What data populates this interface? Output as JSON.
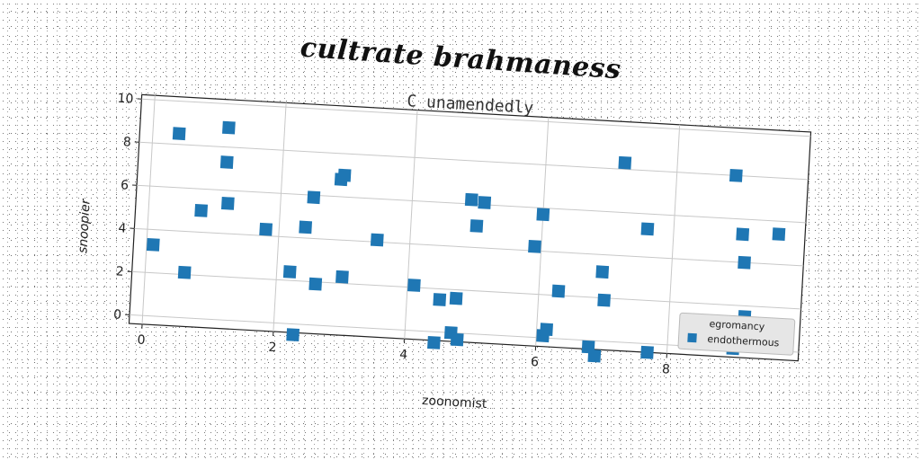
{
  "page_title": "cultrate brahmaness",
  "chart_data": {
    "type": "scatter",
    "title": "C unamendedly",
    "xlabel": "zoonomist",
    "ylabel": "snoopier",
    "xlim": [
      -0.2,
      10
    ],
    "ylim": [
      -0.4,
      10.2
    ],
    "xticks": [
      0,
      2,
      4,
      6,
      8
    ],
    "yticks": [
      0,
      2,
      4,
      6,
      8,
      10
    ],
    "grid": true,
    "legend_position": "lower-right",
    "legend_title": "egromancy",
    "color": "#1f77b4",
    "series": [
      {
        "name": "endothermous",
        "x": [
          0.1,
          0.4,
          0.6,
          0.8,
          1.15,
          1.15,
          1.2,
          1.8,
          2.2,
          2.3,
          2.4,
          2.5,
          2.6,
          2.9,
          2.95,
          3.0,
          3.5,
          4.1,
          4.45,
          4.5,
          4.7,
          4.75,
          4.8,
          4.9,
          5.0,
          5.1,
          5.9,
          6.0,
          6.1,
          6.15,
          6.3,
          6.8,
          6.9,
          6.95,
          7.0,
          7.2,
          7.6,
          7.7,
          8.6,
          8.9,
          9.0,
          9.05,
          9.1,
          9.15,
          9.3,
          9.6
        ],
        "y": [
          3.3,
          8.5,
          2.1,
          5.0,
          8.9,
          7.3,
          5.4,
          4.3,
          2.4,
          -0.5,
          4.5,
          5.9,
          1.9,
          6.8,
          7.0,
          2.3,
          4.1,
          2.1,
          -0.5,
          1.5,
          0.0,
          1.6,
          -0.3,
          6.2,
          5.0,
          6.1,
          4.2,
          5.7,
          0.1,
          0.4,
          2.2,
          -0.3,
          -0.7,
          3.2,
          1.9,
          8.3,
          5.3,
          -0.4,
          0.3,
          8.0,
          0.0,
          5.3,
          4.0,
          1.5,
          0.9,
          5.4
        ]
      }
    ]
  }
}
